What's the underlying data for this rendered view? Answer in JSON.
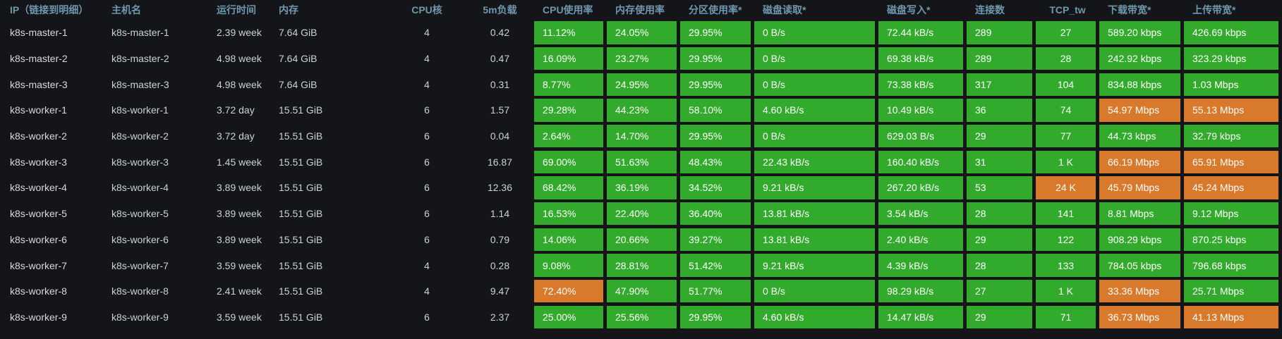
{
  "colors": {
    "green": "#32ab2c",
    "orange": "#d9792b",
    "header_text": "#6f97ad",
    "background": "#131518",
    "body_text": "#ccd2d2"
  },
  "table": {
    "columns": [
      {
        "id": "ip",
        "label": "IP（链接到明细）",
        "type": "plain",
        "hclass": "pad14"
      },
      {
        "id": "hostname",
        "label": "主机名",
        "type": "plain",
        "hclass": "pad8"
      },
      {
        "id": "uptime",
        "label": "运行时间",
        "type": "plain",
        "hclass": "pad2"
      },
      {
        "id": "memory",
        "label": "内存",
        "type": "plain",
        "hclass": "pad2"
      },
      {
        "id": "cpu_cores",
        "label": "CPU核",
        "type": "plain",
        "hclass": "center"
      },
      {
        "id": "load_5m",
        "label": "5m负载",
        "type": "plain",
        "hclass": "center"
      },
      {
        "id": "cpu_usage",
        "label": "CPU使用率",
        "type": "metric",
        "hclass": "pad12"
      },
      {
        "id": "mem_usage",
        "label": "内存使用率",
        "type": "metric",
        "hclass": "pad12"
      },
      {
        "id": "partition_usage",
        "label": "分区使用率*",
        "type": "metric",
        "hclass": "pad12"
      },
      {
        "id": "disk_read",
        "label": "磁盘读取*",
        "type": "metric",
        "hclass": "pad12"
      },
      {
        "id": "disk_write",
        "label": "磁盘写入*",
        "type": "metric",
        "hclass": "pad12"
      },
      {
        "id": "connections",
        "label": "连接数",
        "type": "metric",
        "hclass": "pad12"
      },
      {
        "id": "tcp_tw",
        "label": "TCP_tw",
        "type": "metric",
        "hclass": "center"
      },
      {
        "id": "download_bw",
        "label": "下载带宽*",
        "type": "metric",
        "hclass": "pad12"
      },
      {
        "id": "upload_bw",
        "label": "上传带宽*",
        "type": "metric",
        "hclass": "pad12"
      }
    ],
    "rows": [
      {
        "ip": "k8s-master-1",
        "hostname": "k8s-master-1",
        "uptime": "2.39 week",
        "memory": "7.64 GiB",
        "cpu_cores": "4",
        "load_5m": "0.42",
        "metrics": [
          {
            "value": "11.12%",
            "color": "green"
          },
          {
            "value": "24.05%",
            "color": "green"
          },
          {
            "value": "29.95%",
            "color": "green"
          },
          {
            "value": "0 B/s",
            "color": "green"
          },
          {
            "value": "72.44 kB/s",
            "color": "green"
          },
          {
            "value": "289",
            "color": "green"
          },
          {
            "value": "27",
            "color": "green"
          },
          {
            "value": "589.20 kbps",
            "color": "green"
          },
          {
            "value": "426.69 kbps",
            "color": "green"
          }
        ]
      },
      {
        "ip": "k8s-master-2",
        "hostname": "k8s-master-2",
        "uptime": "4.98 week",
        "memory": "7.64 GiB",
        "cpu_cores": "4",
        "load_5m": "0.47",
        "metrics": [
          {
            "value": "16.09%",
            "color": "green"
          },
          {
            "value": "23.27%",
            "color": "green"
          },
          {
            "value": "29.95%",
            "color": "green"
          },
          {
            "value": "0 B/s",
            "color": "green"
          },
          {
            "value": "69.38 kB/s",
            "color": "green"
          },
          {
            "value": "289",
            "color": "green"
          },
          {
            "value": "28",
            "color": "green"
          },
          {
            "value": "242.92 kbps",
            "color": "green"
          },
          {
            "value": "323.29 kbps",
            "color": "green"
          }
        ]
      },
      {
        "ip": "k8s-master-3",
        "hostname": "k8s-master-3",
        "uptime": "4.98 week",
        "memory": "7.64 GiB",
        "cpu_cores": "4",
        "load_5m": "0.31",
        "metrics": [
          {
            "value": "8.77%",
            "color": "green"
          },
          {
            "value": "24.95%",
            "color": "green"
          },
          {
            "value": "29.95%",
            "color": "green"
          },
          {
            "value": "0 B/s",
            "color": "green"
          },
          {
            "value": "73.38 kB/s",
            "color": "green"
          },
          {
            "value": "317",
            "color": "green"
          },
          {
            "value": "104",
            "color": "green"
          },
          {
            "value": "834.88 kbps",
            "color": "green"
          },
          {
            "value": "1.03 Mbps",
            "color": "green"
          }
        ]
      },
      {
        "ip": "k8s-worker-1",
        "hostname": "k8s-worker-1",
        "uptime": "3.72 day",
        "memory": "15.51 GiB",
        "cpu_cores": "6",
        "load_5m": "1.57",
        "metrics": [
          {
            "value": "29.28%",
            "color": "green"
          },
          {
            "value": "44.23%",
            "color": "green"
          },
          {
            "value": "58.10%",
            "color": "green"
          },
          {
            "value": "4.60 kB/s",
            "color": "green"
          },
          {
            "value": "10.49 kB/s",
            "color": "green"
          },
          {
            "value": "36",
            "color": "green"
          },
          {
            "value": "74",
            "color": "green"
          },
          {
            "value": "54.97 Mbps",
            "color": "orange"
          },
          {
            "value": "55.13 Mbps",
            "color": "orange"
          }
        ]
      },
      {
        "ip": "k8s-worker-2",
        "hostname": "k8s-worker-2",
        "uptime": "3.72 day",
        "memory": "15.51 GiB",
        "cpu_cores": "6",
        "load_5m": "0.04",
        "metrics": [
          {
            "value": "2.64%",
            "color": "green"
          },
          {
            "value": "14.70%",
            "color": "green"
          },
          {
            "value": "29.95%",
            "color": "green"
          },
          {
            "value": "0 B/s",
            "color": "green"
          },
          {
            "value": "629.03 B/s",
            "color": "green"
          },
          {
            "value": "29",
            "color": "green"
          },
          {
            "value": "77",
            "color": "green"
          },
          {
            "value": "44.73 kbps",
            "color": "green"
          },
          {
            "value": "32.79 kbps",
            "color": "green"
          }
        ]
      },
      {
        "ip": "k8s-worker-3",
        "hostname": "k8s-worker-3",
        "uptime": "1.45 week",
        "memory": "15.51 GiB",
        "cpu_cores": "6",
        "load_5m": "16.87",
        "metrics": [
          {
            "value": "69.00%",
            "color": "green"
          },
          {
            "value": "51.63%",
            "color": "green"
          },
          {
            "value": "48.43%",
            "color": "green"
          },
          {
            "value": "22.43 kB/s",
            "color": "green"
          },
          {
            "value": "160.40 kB/s",
            "color": "green"
          },
          {
            "value": "31",
            "color": "green"
          },
          {
            "value": "1 K",
            "color": "green"
          },
          {
            "value": "66.19 Mbps",
            "color": "orange"
          },
          {
            "value": "65.91 Mbps",
            "color": "orange"
          }
        ]
      },
      {
        "ip": "k8s-worker-4",
        "hostname": "k8s-worker-4",
        "uptime": "3.89 week",
        "memory": "15.51 GiB",
        "cpu_cores": "6",
        "load_5m": "12.36",
        "metrics": [
          {
            "value": "68.42%",
            "color": "green"
          },
          {
            "value": "36.19%",
            "color": "green"
          },
          {
            "value": "34.52%",
            "color": "green"
          },
          {
            "value": "9.21 kB/s",
            "color": "green"
          },
          {
            "value": "267.20 kB/s",
            "color": "green"
          },
          {
            "value": "53",
            "color": "green"
          },
          {
            "value": "24 K",
            "color": "orange"
          },
          {
            "value": "45.79 Mbps",
            "color": "orange"
          },
          {
            "value": "45.24 Mbps",
            "color": "orange"
          }
        ]
      },
      {
        "ip": "k8s-worker-5",
        "hostname": "k8s-worker-5",
        "uptime": "3.89 week",
        "memory": "15.51 GiB",
        "cpu_cores": "6",
        "load_5m": "1.14",
        "metrics": [
          {
            "value": "16.53%",
            "color": "green"
          },
          {
            "value": "22.40%",
            "color": "green"
          },
          {
            "value": "36.40%",
            "color": "green"
          },
          {
            "value": "13.81 kB/s",
            "color": "green"
          },
          {
            "value": "3.54 kB/s",
            "color": "green"
          },
          {
            "value": "28",
            "color": "green"
          },
          {
            "value": "141",
            "color": "green"
          },
          {
            "value": "8.81 Mbps",
            "color": "green"
          },
          {
            "value": "9.12 Mbps",
            "color": "green"
          }
        ]
      },
      {
        "ip": "k8s-worker-6",
        "hostname": "k8s-worker-6",
        "uptime": "3.89 week",
        "memory": "15.51 GiB",
        "cpu_cores": "6",
        "load_5m": "0.79",
        "metrics": [
          {
            "value": "14.06%",
            "color": "green"
          },
          {
            "value": "20.66%",
            "color": "green"
          },
          {
            "value": "39.27%",
            "color": "green"
          },
          {
            "value": "13.81 kB/s",
            "color": "green"
          },
          {
            "value": "2.40 kB/s",
            "color": "green"
          },
          {
            "value": "29",
            "color": "green"
          },
          {
            "value": "122",
            "color": "green"
          },
          {
            "value": "908.29 kbps",
            "color": "green"
          },
          {
            "value": "870.25 kbps",
            "color": "green"
          }
        ]
      },
      {
        "ip": "k8s-worker-7",
        "hostname": "k8s-worker-7",
        "uptime": "3.59 week",
        "memory": "15.51 GiB",
        "cpu_cores": "4",
        "load_5m": "0.28",
        "metrics": [
          {
            "value": "9.08%",
            "color": "green"
          },
          {
            "value": "28.81%",
            "color": "green"
          },
          {
            "value": "51.42%",
            "color": "green"
          },
          {
            "value": "9.21 kB/s",
            "color": "green"
          },
          {
            "value": "4.39 kB/s",
            "color": "green"
          },
          {
            "value": "28",
            "color": "green"
          },
          {
            "value": "133",
            "color": "green"
          },
          {
            "value": "784.05 kbps",
            "color": "green"
          },
          {
            "value": "796.68 kbps",
            "color": "green"
          }
        ]
      },
      {
        "ip": "k8s-worker-8",
        "hostname": "k8s-worker-8",
        "uptime": "2.41 week",
        "memory": "15.51 GiB",
        "cpu_cores": "4",
        "load_5m": "9.47",
        "metrics": [
          {
            "value": "72.40%",
            "color": "orange"
          },
          {
            "value": "47.90%",
            "color": "green"
          },
          {
            "value": "51.77%",
            "color": "green"
          },
          {
            "value": "0 B/s",
            "color": "green"
          },
          {
            "value": "98.29 kB/s",
            "color": "green"
          },
          {
            "value": "27",
            "color": "green"
          },
          {
            "value": "1 K",
            "color": "green"
          },
          {
            "value": "33.36 Mbps",
            "color": "orange"
          },
          {
            "value": "25.71 Mbps",
            "color": "green"
          }
        ]
      },
      {
        "ip": "k8s-worker-9",
        "hostname": "k8s-worker-9",
        "uptime": "3.59 week",
        "memory": "15.51 GiB",
        "cpu_cores": "6",
        "load_5m": "2.37",
        "metrics": [
          {
            "value": "25.00%",
            "color": "green"
          },
          {
            "value": "25.56%",
            "color": "green"
          },
          {
            "value": "29.95%",
            "color": "green"
          },
          {
            "value": "4.60 kB/s",
            "color": "green"
          },
          {
            "value": "14.47 kB/s",
            "color": "green"
          },
          {
            "value": "29",
            "color": "green"
          },
          {
            "value": "71",
            "color": "green"
          },
          {
            "value": "36.73 Mbps",
            "color": "orange"
          },
          {
            "value": "41.13 Mbps",
            "color": "orange"
          }
        ]
      }
    ]
  }
}
